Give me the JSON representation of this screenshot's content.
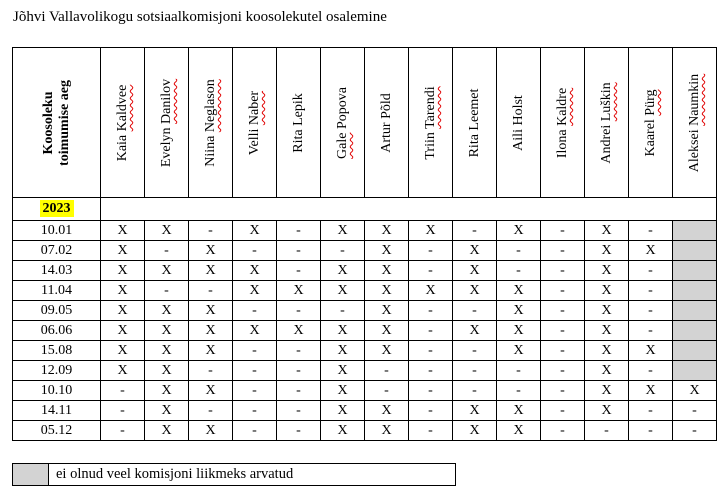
{
  "title": "Jõhvi Vallavolikogu sotsiaalkomisjoni koosolekutel osalemine",
  "colors": {
    "year_highlight": "#FFFF00",
    "not_member_gray": "#D3D3D3",
    "spellcheck_red": "#E00000"
  },
  "table": {
    "corner_header_line1": "Koosoleku",
    "corner_header_line2": "toimumise aeg",
    "year_label": "2023",
    "members": [
      {
        "name": "Kaia Kaldvee",
        "misspelled": "Kaldvee"
      },
      {
        "name": "Evelyn Danilov",
        "misspelled": "Danilov"
      },
      {
        "name": "Niina Neglason",
        "misspelled": "Neglason"
      },
      {
        "name": "Velli Naber",
        "misspelled": "Naber"
      },
      {
        "name": "Rita Lepik",
        "misspelled": ""
      },
      {
        "name": "Gale Popova",
        "misspelled": "Gale"
      },
      {
        "name": "Artur Põld",
        "misspelled": ""
      },
      {
        "name": "Triin Tarendi",
        "misspelled": "Tarendi"
      },
      {
        "name": "Rita Leemet",
        "misspelled": ""
      },
      {
        "name": "Aili Holst",
        "misspelled": ""
      },
      {
        "name": "Ilona Kaldre",
        "misspelled": "Kaldre"
      },
      {
        "name": "Andrei Luškin",
        "misspelled": "Luškin"
      },
      {
        "name": "Kaarel Pürg",
        "misspelled": "Pürg"
      },
      {
        "name": "Aleksei Naumkin",
        "misspelled": "Naumkin"
      }
    ],
    "rows": [
      {
        "date": "10.01",
        "cells": [
          "X",
          "X",
          "-",
          "X",
          "-",
          "X",
          "X",
          "X",
          "-",
          "X",
          "-",
          "X",
          "-",
          "gray"
        ]
      },
      {
        "date": "07.02",
        "cells": [
          "X",
          "-",
          "X",
          "-",
          "-",
          "-",
          "X",
          "-",
          "X",
          "-",
          "-",
          "X",
          "X",
          "gray"
        ]
      },
      {
        "date": "14.03",
        "cells": [
          "X",
          "X",
          "X",
          "X",
          "-",
          "X",
          "X",
          "-",
          "X",
          "-",
          "-",
          "X",
          "-",
          "gray"
        ]
      },
      {
        "date": "11.04",
        "cells": [
          "X",
          "-",
          "-",
          "X",
          "X",
          "X",
          "X",
          "X",
          "X",
          "X",
          "-",
          "X",
          "-",
          "gray"
        ]
      },
      {
        "date": "09.05",
        "cells": [
          "X",
          "X",
          "X",
          "-",
          "-",
          "-",
          "X",
          "-",
          "-",
          "X",
          "-",
          "X",
          "-",
          "gray"
        ]
      },
      {
        "date": "06.06",
        "cells": [
          "X",
          "X",
          "X",
          "X",
          "X",
          "X",
          "X",
          "-",
          "X",
          "X",
          "-",
          "X",
          "-",
          "gray"
        ]
      },
      {
        "date": "15.08",
        "cells": [
          "X",
          "X",
          "X",
          "-",
          "-",
          "X",
          "X",
          "-",
          "-",
          "X",
          "-",
          "X",
          "X",
          "gray"
        ]
      },
      {
        "date": "12.09",
        "cells": [
          "X",
          "X",
          "-",
          "-",
          "-",
          "X",
          "-",
          "-",
          "-",
          "-",
          "-",
          "X",
          "-",
          "gray"
        ]
      },
      {
        "date": "10.10",
        "cells": [
          "-",
          "X",
          "X",
          "-",
          "-",
          "X",
          "-",
          "-",
          "-",
          "-",
          "-",
          "X",
          "X",
          "X"
        ]
      },
      {
        "date": "14.11",
        "cells": [
          "-",
          "X",
          "-",
          "-",
          "-",
          "X",
          "X",
          "-",
          "X",
          "X",
          "-",
          "X",
          "-",
          "-"
        ]
      },
      {
        "date": "05.12",
        "cells": [
          "-",
          "X",
          "X",
          "-",
          "-",
          "X",
          "X",
          "-",
          "X",
          "X",
          "-",
          "-",
          "-",
          "-"
        ]
      }
    ]
  },
  "legend": {
    "text": "ei olnud veel komisjoni liikmeks arvatud"
  }
}
